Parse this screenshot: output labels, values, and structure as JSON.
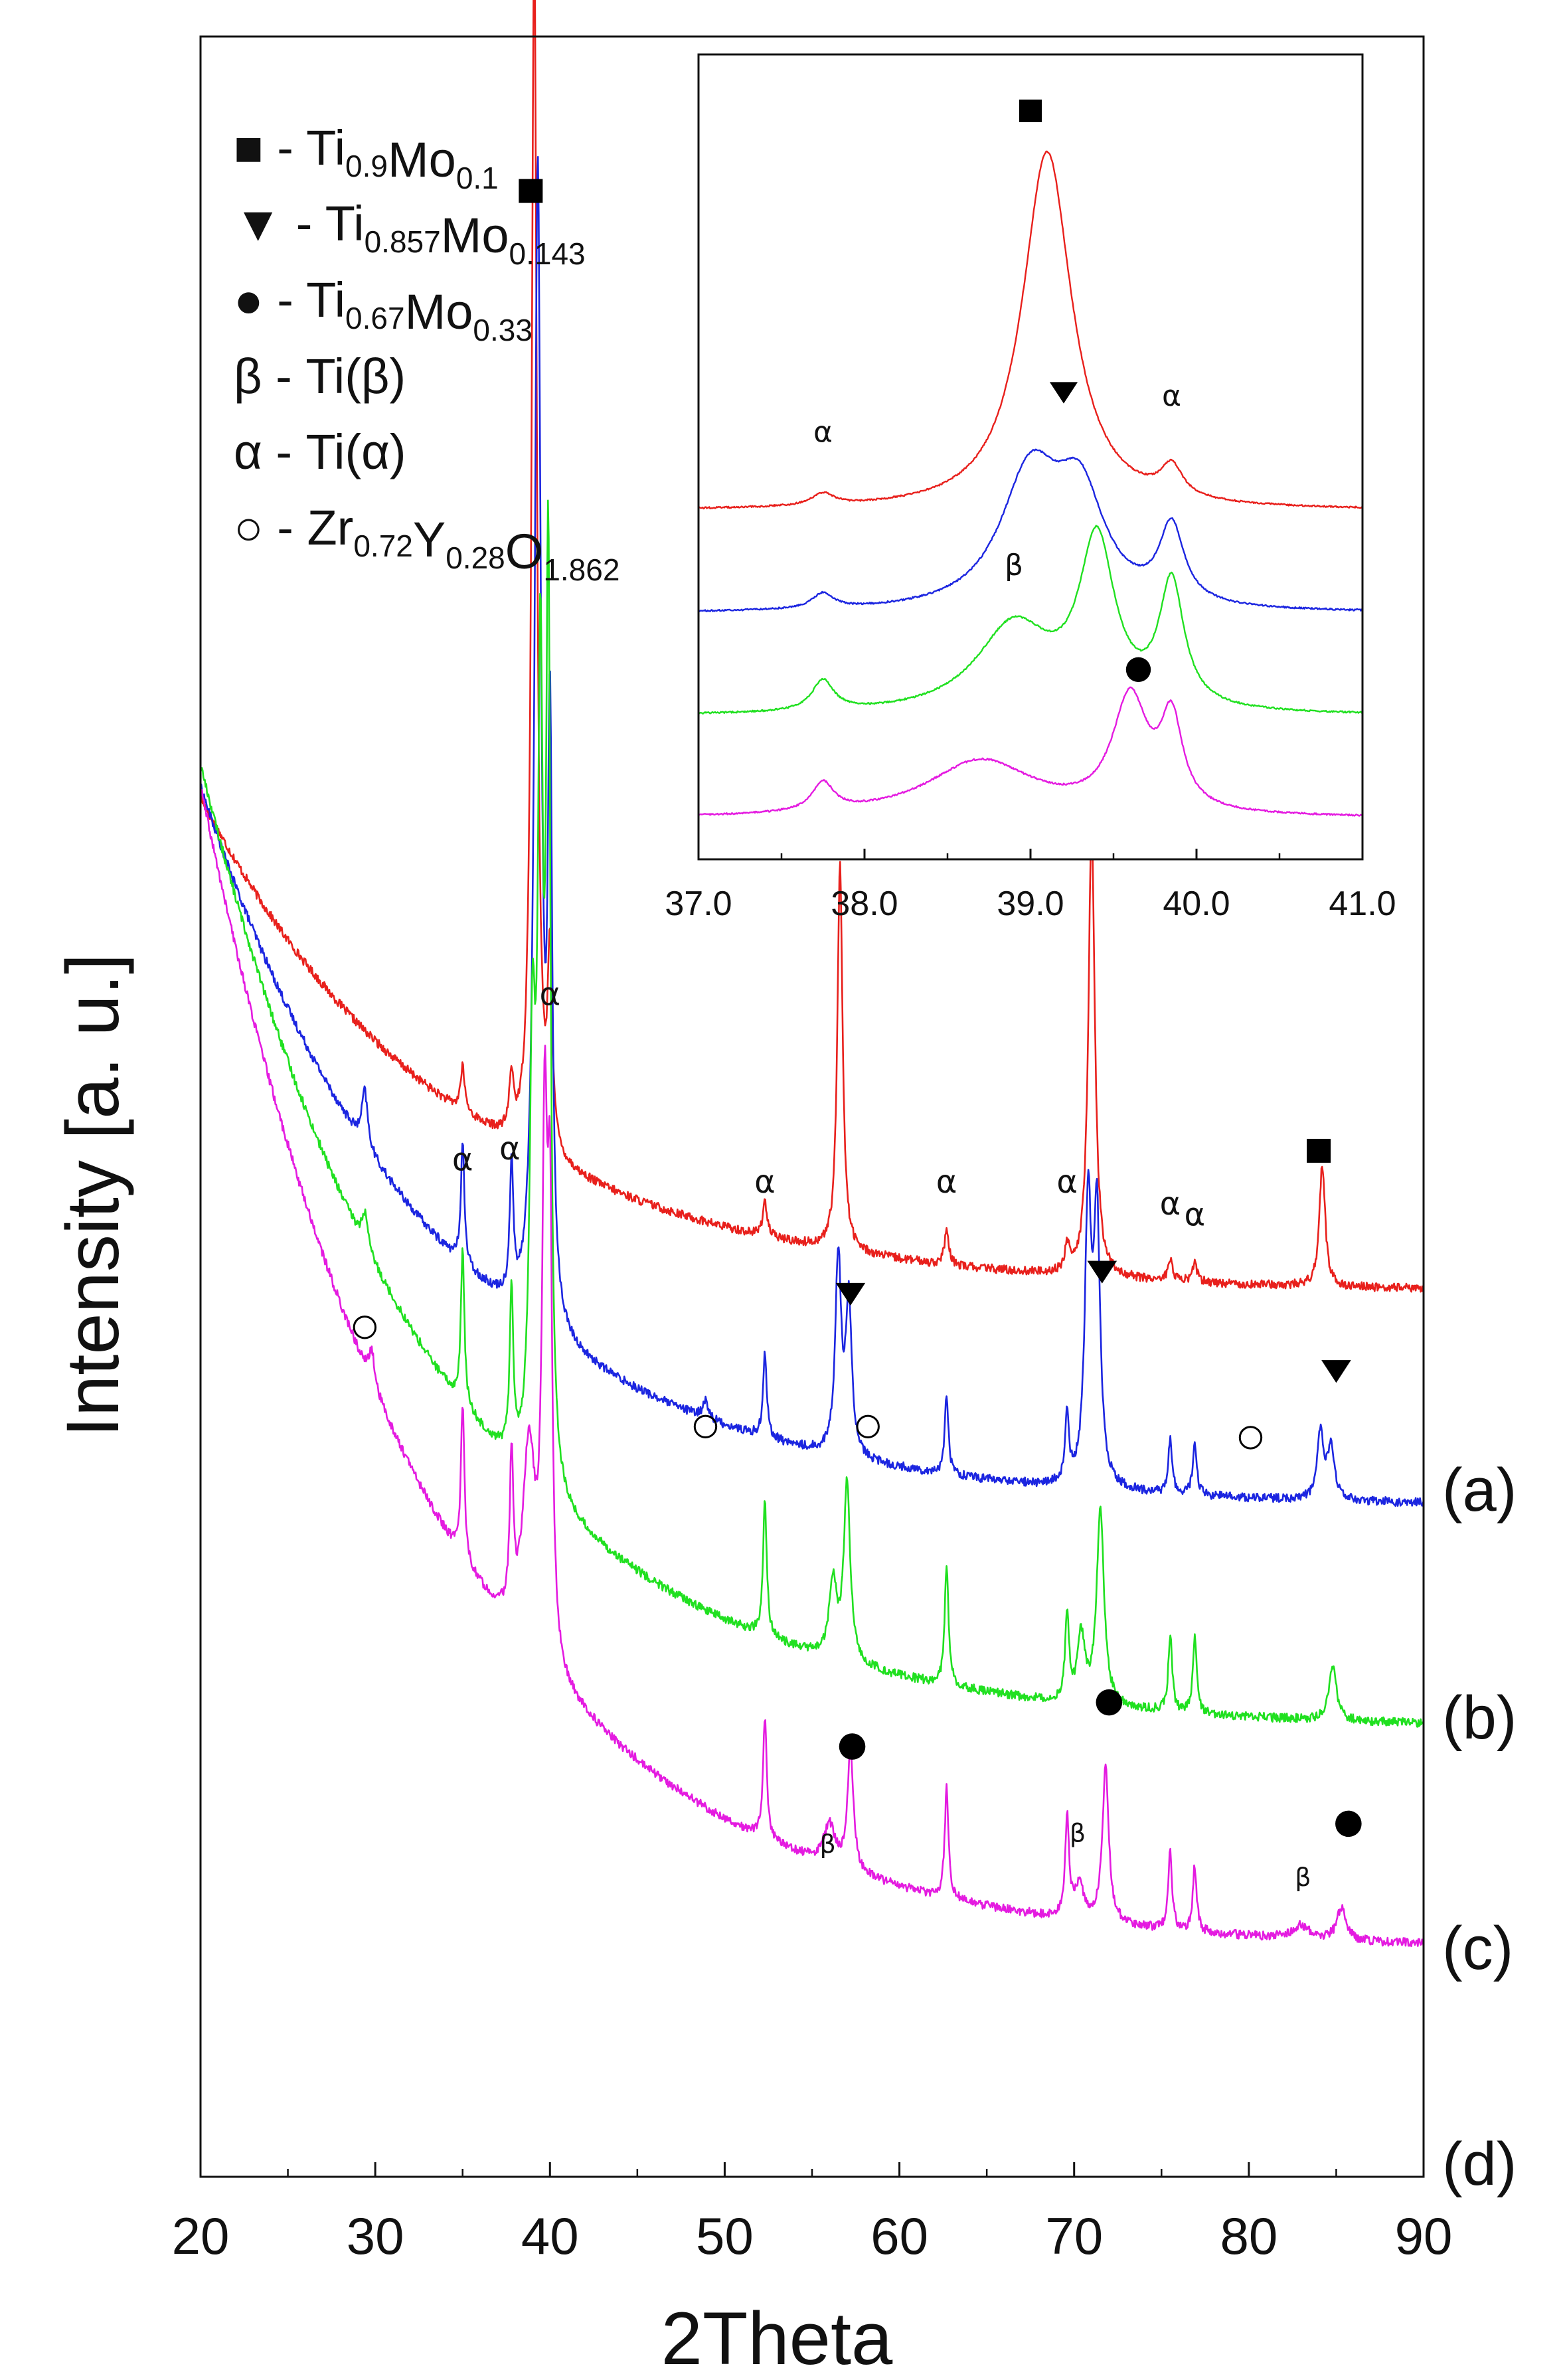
{
  "chart_data": [
    {
      "type": "line",
      "title": "",
      "xlabel": "2Theta",
      "ylabel": "Intensity [a. u.]",
      "xlim": [
        20,
        90
      ],
      "x_ticks": [
        20,
        30,
        40,
        50,
        60,
        70,
        80,
        90
      ],
      "x_tick_labels": [
        "20",
        "30",
        "40",
        "50",
        "60",
        "70",
        "80",
        "90"
      ],
      "y_ticks_shown": false,
      "series": [
        {
          "name": "(a)",
          "label": "(a)",
          "color": "#e8201c",
          "baseline": 1.0,
          "start": 3.15,
          "decay": 5.5,
          "noise": 0.02,
          "end": 0.92,
          "peaks": [
            [
              35.0,
              0.2,
              0.15
            ],
            [
              37.8,
              0.25,
              0.15
            ],
            [
              39.1,
              5.55,
              0.18
            ],
            [
              40.0,
              0.88,
              0.15
            ],
            [
              52.3,
              0.16,
              0.15
            ],
            [
              56.6,
              1.75,
              0.18
            ],
            [
              62.7,
              0.15,
              0.15
            ],
            [
              69.6,
              0.12,
              0.15
            ],
            [
              71.0,
              2.05,
              0.22
            ],
            [
              75.5,
              0.1,
              0.15
            ],
            [
              76.9,
              0.09,
              0.15
            ],
            [
              84.2,
              0.55,
              0.2
            ]
          ]
        },
        {
          "name": "(b)",
          "label": "(b)",
          "color": "#1b25e0",
          "baseline": 0.0,
          "start": 3.2,
          "decay": 6.0,
          "noise": 0.02,
          "end": -0.05,
          "peaks": [
            [
              29.4,
              0.25,
              0.2
            ],
            [
              35.0,
              0.55,
              0.12
            ],
            [
              37.8,
              0.6,
              0.12
            ],
            [
              39.3,
              5.2,
              0.22
            ],
            [
              40.0,
              2.6,
              0.15
            ],
            [
              48.9,
              0.08,
              0.2
            ],
            [
              52.3,
              0.38,
              0.13
            ],
            [
              56.5,
              0.9,
              0.2
            ],
            [
              57.1,
              0.7,
              0.2
            ],
            [
              62.7,
              0.35,
              0.13
            ],
            [
              69.6,
              0.3,
              0.13
            ],
            [
              70.8,
              1.25,
              0.22
            ],
            [
              71.3,
              1.2,
              0.22
            ],
            [
              75.5,
              0.25,
              0.13
            ],
            [
              76.9,
              0.25,
              0.13
            ],
            [
              84.1,
              0.3,
              0.22
            ],
            [
              84.7,
              0.25,
              0.22
            ]
          ]
        },
        {
          "name": "(c)",
          "label": "(c)",
          "color": "#20e020",
          "baseline": -1.0,
          "start": 3.3,
          "decay": 6.0,
          "noise": 0.02,
          "end": -1.05,
          "peaks": [
            [
              29.4,
              0.15,
              0.2
            ],
            [
              35.0,
              0.7,
              0.12
            ],
            [
              37.8,
              0.75,
              0.12
            ],
            [
              39.0,
              1.8,
              0.2
            ],
            [
              39.45,
              3.4,
              0.18
            ],
            [
              39.9,
              4.0,
              0.15
            ],
            [
              52.3,
              0.6,
              0.13
            ],
            [
              56.2,
              0.35,
              0.25
            ],
            [
              57.0,
              0.8,
              0.22
            ],
            [
              62.7,
              0.55,
              0.13
            ],
            [
              69.6,
              0.4,
              0.13
            ],
            [
              70.4,
              0.3,
              0.25
            ],
            [
              71.5,
              0.9,
              0.25
            ],
            [
              75.5,
              0.35,
              0.13
            ],
            [
              76.9,
              0.35,
              0.13
            ],
            [
              84.8,
              0.25,
              0.25
            ]
          ]
        },
        {
          "name": "(d)",
          "label": "(d)",
          "color": "#e41be0",
          "baseline": -2.0,
          "start": 3.2,
          "decay": 6.0,
          "noise": 0.02,
          "end": -2.05,
          "peaks": [
            [
              29.8,
              0.15,
              0.2
            ],
            [
              35.0,
              0.7,
              0.12
            ],
            [
              37.8,
              0.7,
              0.12
            ],
            [
              38.8,
              0.9,
              0.45
            ],
            [
              39.7,
              2.3,
              0.18
            ],
            [
              40.0,
              1.8,
              0.15
            ],
            [
              52.3,
              0.55,
              0.13
            ],
            [
              56.0,
              0.18,
              0.4
            ],
            [
              57.2,
              0.55,
              0.2
            ],
            [
              62.7,
              0.5,
              0.13
            ],
            [
              69.6,
              0.45,
              0.13
            ],
            [
              70.3,
              0.15,
              0.35
            ],
            [
              71.8,
              0.7,
              0.22
            ],
            [
              75.5,
              0.35,
              0.13
            ],
            [
              76.9,
              0.3,
              0.13
            ],
            [
              83.0,
              0.06,
              0.6
            ],
            [
              85.3,
              0.15,
              0.3
            ]
          ]
        }
      ],
      "annotations": [
        {
          "marker": "square",
          "x": 38.9,
          "y": 5.9
        },
        {
          "marker": "square",
          "x": 56.6,
          "y": 2.95
        },
        {
          "marker": "square",
          "x": 70.8,
          "y": 3.2
        },
        {
          "marker": "square",
          "x": 84.0,
          "y": 1.55
        },
        {
          "marker": "alpha",
          "x": 35.0,
          "y": 1.5
        },
        {
          "marker": "alpha",
          "x": 37.7,
          "y": 1.55
        },
        {
          "marker": "alpha",
          "x": 40.0,
          "y": 2.25
        },
        {
          "marker": "alpha",
          "x": 52.3,
          "y": 1.4
        },
        {
          "marker": "alpha",
          "x": 62.7,
          "y": 1.4
        },
        {
          "marker": "alpha",
          "x": 69.6,
          "y": 1.4
        },
        {
          "marker": "alpha",
          "x": 75.5,
          "y": 1.3
        },
        {
          "marker": "alpha",
          "x": 76.9,
          "y": 1.25
        },
        {
          "marker": "circle-open",
          "x": 29.4,
          "y": 0.75
        },
        {
          "marker": "circle-open",
          "x": 48.9,
          "y": 0.3
        },
        {
          "marker": "circle-open",
          "x": 58.2,
          "y": 0.3
        },
        {
          "marker": "circle-open",
          "x": 80.1,
          "y": 0.25
        },
        {
          "marker": "triangle-down",
          "x": 57.2,
          "y": 0.9
        },
        {
          "marker": "triangle-down",
          "x": 71.6,
          "y": 1.0
        },
        {
          "marker": "triangle-down",
          "x": 85.0,
          "y": 0.55
        },
        {
          "marker": "circle-filled",
          "x": 57.3,
          "y": -1.15
        },
        {
          "marker": "circle-filled",
          "x": 72.0,
          "y": -0.95
        },
        {
          "marker": "circle-filled",
          "x": 85.7,
          "y": -1.5
        },
        {
          "marker": "beta",
          "x": 55.9,
          "y": -1.6
        },
        {
          "marker": "beta",
          "x": 70.2,
          "y": -1.55
        },
        {
          "marker": "beta",
          "x": 83.1,
          "y": -1.75
        }
      ]
    },
    {
      "type": "line",
      "title": "",
      "inset": true,
      "xlim": [
        37.0,
        41.0
      ],
      "x_ticks": [
        37.0,
        38.0,
        39.0,
        40.0,
        41.0
      ],
      "x_tick_labels": [
        "37.0",
        "38.0",
        "39.0",
        "40.0",
        "41.0"
      ],
      "series": [
        {
          "name": "(a)",
          "color": "#e8201c",
          "baseline": 3.0,
          "noise": 0.008,
          "peaks": [
            [
              37.75,
              0.12,
              0.08
            ],
            [
              39.1,
              3.5,
              0.18
            ],
            [
              39.85,
              0.3,
              0.08
            ]
          ]
        },
        {
          "name": "(b)",
          "color": "#1b25e0",
          "baseline": 2.0,
          "noise": 0.008,
          "peaks": [
            [
              37.75,
              0.15,
              0.08
            ],
            [
              39.0,
              1.3,
              0.22
            ],
            [
              39.3,
              1.0,
              0.18
            ],
            [
              39.85,
              0.75,
              0.09
            ]
          ]
        },
        {
          "name": "(c)",
          "color": "#20e020",
          "baseline": 1.0,
          "noise": 0.008,
          "peaks": [
            [
              37.75,
              0.3,
              0.08
            ],
            [
              38.9,
              0.85,
              0.28
            ],
            [
              39.4,
              1.6,
              0.13
            ],
            [
              39.85,
              1.2,
              0.09
            ]
          ]
        },
        {
          "name": "(d)",
          "color": "#e41be0",
          "baseline": 0.0,
          "noise": 0.008,
          "peaks": [
            [
              37.75,
              0.28,
              0.08
            ],
            [
              38.7,
              0.55,
              0.4
            ],
            [
              39.6,
              1.1,
              0.13
            ],
            [
              39.85,
              0.85,
              0.08
            ]
          ]
        }
      ],
      "annotations": [
        {
          "marker": "square",
          "x": 39.0,
          "y": 6.9
        },
        {
          "marker": "triangle-down",
          "x": 39.2,
          "y": 4.15
        },
        {
          "marker": "alpha",
          "x": 37.75,
          "y": 3.75
        },
        {
          "marker": "alpha",
          "x": 39.85,
          "y": 4.1
        },
        {
          "marker": "beta",
          "x": 38.9,
          "y": 2.45
        },
        {
          "marker": "circle-filled",
          "x": 39.65,
          "y": 1.45
        }
      ]
    }
  ],
  "pattern_labels": [
    "(a)",
    "(b)",
    "(c)",
    "(d)"
  ],
  "legend": [
    {
      "symbol": "■",
      "sep": " - ",
      "formula": [
        [
          "Ti",
          ""
        ],
        [
          "0.9",
          "sub"
        ],
        [
          "Mo",
          ""
        ],
        [
          "0.1",
          "sub"
        ]
      ]
    },
    {
      "symbol": "▼",
      "sep": " - ",
      "formula": [
        [
          "Ti",
          ""
        ],
        [
          "0.857",
          "sub"
        ],
        [
          "Mo",
          ""
        ],
        [
          "0.143",
          "sub"
        ]
      ]
    },
    {
      "symbol": "●",
      "sep": " - ",
      "formula": [
        [
          "Ti",
          ""
        ],
        [
          "0.67",
          "sub"
        ],
        [
          "Mo",
          ""
        ],
        [
          "0.33",
          "sub"
        ]
      ]
    },
    {
      "symbol": "β",
      "sep": " - ",
      "formula": [
        [
          "Ti(β)",
          ""
        ]
      ]
    },
    {
      "symbol": "α",
      "sep": " - ",
      "formula": [
        [
          "Ti(α)",
          ""
        ]
      ]
    },
    {
      "symbol": "○",
      "sep": " - ",
      "formula": [
        [
          "Zr",
          ""
        ],
        [
          "0.72",
          "sub"
        ],
        [
          "Y",
          ""
        ],
        [
          "0.28",
          "sub"
        ],
        [
          "O",
          ""
        ],
        [
          "1.862",
          "sub"
        ]
      ]
    }
  ],
  "marker_glyphs": {
    "alpha": "α",
    "beta": "β"
  }
}
